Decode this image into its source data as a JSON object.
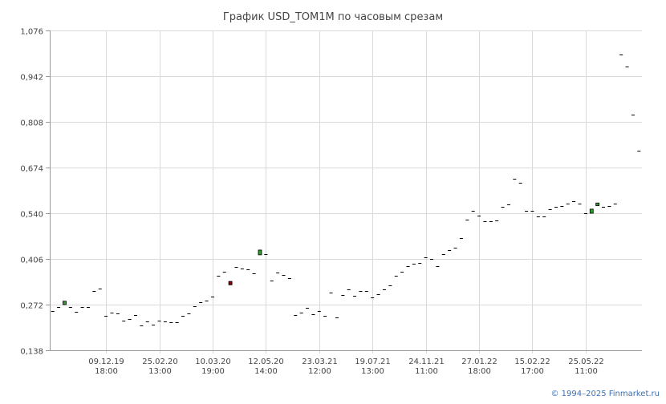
{
  "chart_data": {
    "type": "candlestick",
    "title": "График USD_TOM1M по часовым срезам",
    "xlabel": "",
    "ylabel": "",
    "ylim": [
      0.138,
      1.076
    ],
    "y_ticks": [
      "1,076",
      "0,942",
      "0,808",
      "0,674",
      "0,540",
      "0,406",
      "0,272",
      "0,138"
    ],
    "y_tick_values": [
      1.076,
      0.942,
      0.808,
      0.674,
      0.54,
      0.406,
      0.272,
      0.138
    ],
    "x_ticks": [
      {
        "date": "09.12.19",
        "time": "18:00",
        "index": 9
      },
      {
        "date": "25.02.20",
        "time": "13:00",
        "index": 18
      },
      {
        "date": "10.03.20",
        "time": "19:00",
        "index": 27
      },
      {
        "date": "12.05.20",
        "time": "14:00",
        "index": 36
      },
      {
        "date": "23.03.21",
        "time": "12:00",
        "index": 45
      },
      {
        "date": "19.07.21",
        "time": "13:00",
        "index": 54
      },
      {
        "date": "24.11.21",
        "time": "11:00",
        "index": 63
      },
      {
        "date": "27.01.22",
        "time": "18:00",
        "index": 72
      },
      {
        "date": "15.02.22",
        "time": "17:00",
        "index": 81
      },
      {
        "date": "25.05.22",
        "time": "11:00",
        "index": 90
      }
    ],
    "grid": true,
    "colors": {
      "up": "#2e9e2e",
      "down": "#8b0000",
      "flat": "#000000",
      "grid": "#d9d9d9",
      "axis": "#999999"
    },
    "candles": [
      {
        "o": 0.254,
        "c": 0.254
      },
      {
        "o": 0.265,
        "c": 0.265
      },
      {
        "o": 0.272,
        "c": 0.282
      },
      {
        "o": 0.266,
        "c": 0.266
      },
      {
        "o": 0.25,
        "c": 0.25
      },
      {
        "o": 0.264,
        "c": 0.264
      },
      {
        "o": 0.264,
        "c": 0.264
      },
      {
        "o": 0.311,
        "c": 0.311
      },
      {
        "o": 0.32,
        "c": 0.32
      },
      {
        "o": 0.238,
        "c": 0.238
      },
      {
        "o": 0.248,
        "c": 0.248
      },
      {
        "o": 0.246,
        "c": 0.246
      },
      {
        "o": 0.224,
        "c": 0.224
      },
      {
        "o": 0.23,
        "c": 0.23
      },
      {
        "o": 0.242,
        "c": 0.242
      },
      {
        "o": 0.211,
        "c": 0.211
      },
      {
        "o": 0.222,
        "c": 0.222
      },
      {
        "o": 0.214,
        "c": 0.214
      },
      {
        "o": 0.225,
        "c": 0.225
      },
      {
        "o": 0.222,
        "c": 0.222
      },
      {
        "o": 0.22,
        "c": 0.22
      },
      {
        "o": 0.22,
        "c": 0.22
      },
      {
        "o": 0.24,
        "c": 0.24
      },
      {
        "o": 0.246,
        "c": 0.246
      },
      {
        "o": 0.268,
        "c": 0.268
      },
      {
        "o": 0.278,
        "c": 0.278
      },
      {
        "o": 0.283,
        "c": 0.283
      },
      {
        "o": 0.296,
        "c": 0.296
      },
      {
        "o": 0.356,
        "c": 0.356
      },
      {
        "o": 0.368,
        "c": 0.368
      },
      {
        "o": 0.34,
        "c": 0.33
      },
      {
        "o": 0.382,
        "c": 0.382
      },
      {
        "o": 0.378,
        "c": 0.378
      },
      {
        "o": 0.375,
        "c": 0.375
      },
      {
        "o": 0.364,
        "c": 0.364
      },
      {
        "o": 0.418,
        "c": 0.432
      },
      {
        "o": 0.421,
        "c": 0.421
      },
      {
        "o": 0.343,
        "c": 0.343
      },
      {
        "o": 0.366,
        "c": 0.366
      },
      {
        "o": 0.358,
        "c": 0.358
      },
      {
        "o": 0.35,
        "c": 0.35
      },
      {
        "o": 0.241,
        "c": 0.241
      },
      {
        "o": 0.248,
        "c": 0.248
      },
      {
        "o": 0.262,
        "c": 0.262
      },
      {
        "o": 0.243,
        "c": 0.243
      },
      {
        "o": 0.254,
        "c": 0.254
      },
      {
        "o": 0.24,
        "c": 0.24
      },
      {
        "o": 0.308,
        "c": 0.308
      },
      {
        "o": 0.234,
        "c": 0.234
      },
      {
        "o": 0.3,
        "c": 0.3
      },
      {
        "o": 0.316,
        "c": 0.316
      },
      {
        "o": 0.298,
        "c": 0.298
      },
      {
        "o": 0.312,
        "c": 0.312
      },
      {
        "o": 0.312,
        "c": 0.312
      },
      {
        "o": 0.294,
        "c": 0.294
      },
      {
        "o": 0.302,
        "c": 0.302
      },
      {
        "o": 0.316,
        "c": 0.316
      },
      {
        "o": 0.328,
        "c": 0.328
      },
      {
        "o": 0.357,
        "c": 0.357
      },
      {
        "o": 0.368,
        "c": 0.368
      },
      {
        "o": 0.385,
        "c": 0.385
      },
      {
        "o": 0.392,
        "c": 0.392
      },
      {
        "o": 0.394,
        "c": 0.394
      },
      {
        "o": 0.41,
        "c": 0.41
      },
      {
        "o": 0.405,
        "c": 0.405
      },
      {
        "o": 0.385,
        "c": 0.385
      },
      {
        "o": 0.42,
        "c": 0.42
      },
      {
        "o": 0.432,
        "c": 0.432
      },
      {
        "o": 0.44,
        "c": 0.44
      },
      {
        "o": 0.466,
        "c": 0.466
      },
      {
        "o": 0.522,
        "c": 0.522
      },
      {
        "o": 0.548,
        "c": 0.548
      },
      {
        "o": 0.534,
        "c": 0.534
      },
      {
        "o": 0.516,
        "c": 0.516
      },
      {
        "o": 0.516,
        "c": 0.516
      },
      {
        "o": 0.52,
        "c": 0.52
      },
      {
        "o": 0.558,
        "c": 0.558
      },
      {
        "o": 0.566,
        "c": 0.566
      },
      {
        "o": 0.64,
        "c": 0.64
      },
      {
        "o": 0.63,
        "c": 0.63
      },
      {
        "o": 0.546,
        "c": 0.546
      },
      {
        "o": 0.548,
        "c": 0.548
      },
      {
        "o": 0.53,
        "c": 0.53
      },
      {
        "o": 0.53,
        "c": 0.53
      },
      {
        "o": 0.552,
        "c": 0.552
      },
      {
        "o": 0.558,
        "c": 0.558
      },
      {
        "o": 0.56,
        "c": 0.56
      },
      {
        "o": 0.568,
        "c": 0.568
      },
      {
        "o": 0.576,
        "c": 0.576
      },
      {
        "o": 0.568,
        "c": 0.568
      },
      {
        "o": 0.54,
        "c": 0.54
      },
      {
        "o": 0.54,
        "c": 0.552
      },
      {
        "o": 0.562,
        "c": 0.57
      },
      {
        "o": 0.558,
        "c": 0.558
      },
      {
        "o": 0.562,
        "c": 0.562
      },
      {
        "o": 0.568,
        "c": 0.568
      },
      {
        "o": 1.006,
        "c": 1.006
      },
      {
        "o": 0.97,
        "c": 0.97
      },
      {
        "o": 0.83,
        "c": 0.83
      },
      {
        "o": 0.724,
        "c": 0.724
      }
    ]
  },
  "credit": "© 1994–2025 Finmarket.ru"
}
